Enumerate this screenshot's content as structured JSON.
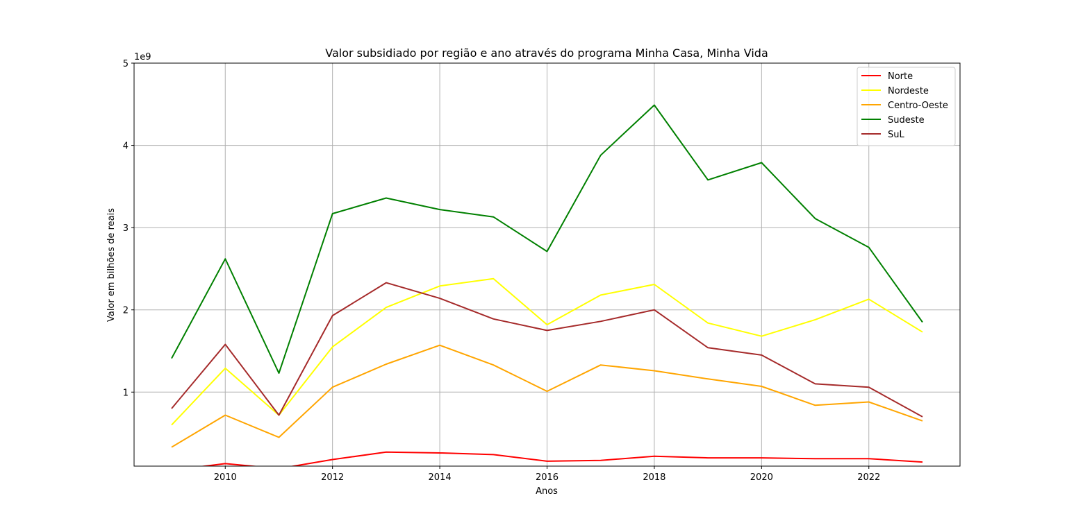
{
  "chart_data": {
    "type": "line",
    "title": "Valor subsidiado por região e ano através do programa Minha Casa, Minha Vida",
    "xlabel": "Anos",
    "ylabel": "Valor em bilhões de reais",
    "y_offset_label": "1e9",
    "xlim": [
      2008.3,
      2023.7
    ],
    "ylim": [
      0.1,
      5.0
    ],
    "x_ticks": [
      2010,
      2012,
      2014,
      2016,
      2018,
      2020,
      2022
    ],
    "x_tick_labels": [
      "2010",
      "2012",
      "2014",
      "2016",
      "2018",
      "2020",
      "2022"
    ],
    "y_ticks": [
      1,
      2,
      3,
      4,
      5
    ],
    "y_tick_labels": [
      "1",
      "2",
      "3",
      "4",
      "5"
    ],
    "grid": true,
    "legend_position": "top-right",
    "x": [
      2009,
      2010,
      2011,
      2012,
      2013,
      2014,
      2015,
      2016,
      2017,
      2018,
      2019,
      2020,
      2021,
      2022,
      2023
    ],
    "series": [
      {
        "name": "Norte",
        "color": "#ff0000",
        "values": [
          0.05,
          0.13,
          0.07,
          0.18,
          0.27,
          0.26,
          0.24,
          0.16,
          0.17,
          0.22,
          0.2,
          0.2,
          0.19,
          0.19,
          0.15
        ]
      },
      {
        "name": "Nordeste",
        "color": "#ffff00",
        "values": [
          0.6,
          1.29,
          0.72,
          1.55,
          2.03,
          2.29,
          2.38,
          1.82,
          2.18,
          2.31,
          1.84,
          1.68,
          1.88,
          2.13,
          1.73
        ]
      },
      {
        "name": "Centro-Oeste",
        "color": "#ffa500",
        "values": [
          0.33,
          0.72,
          0.45,
          1.06,
          1.34,
          1.57,
          1.33,
          1.01,
          1.33,
          1.26,
          1.16,
          1.07,
          0.84,
          0.88,
          0.65
        ]
      },
      {
        "name": "Sudeste",
        "color": "#008000",
        "values": [
          1.41,
          2.62,
          1.23,
          3.17,
          3.36,
          3.22,
          3.13,
          2.71,
          3.88,
          4.49,
          3.58,
          3.79,
          3.11,
          2.76,
          1.85
        ]
      },
      {
        "name": "SuL",
        "color": "#a52a2a",
        "values": [
          0.8,
          1.58,
          0.72,
          1.93,
          2.33,
          2.14,
          1.89,
          1.75,
          1.86,
          2.0,
          1.54,
          1.45,
          1.1,
          1.06,
          0.7
        ]
      }
    ]
  }
}
